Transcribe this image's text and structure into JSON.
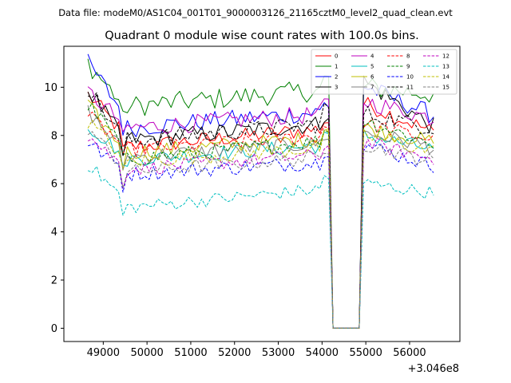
{
  "supertitle": "Data file: modeM0/AS1C04_001T01_9000003126_21165cztM0_level2_quad_clean.evt",
  "chart_data": {
    "type": "line",
    "title": "Quadrant 0 module wise count rates with 100.0s bins.",
    "xlabel": "",
    "ylabel": "",
    "x_offset_label": "+3.046e8",
    "x_start": 48650,
    "x_step": 100,
    "x_end": 56600,
    "gap": [
      54250,
      54900
    ],
    "xlim": [
      48100,
      57150
    ],
    "ylim": [
      -0.55,
      11.7
    ],
    "xticks": [
      49000,
      50000,
      51000,
      52000,
      53000,
      54000,
      55000,
      56000
    ],
    "xtick_labels": [
      "49000",
      "50000",
      "51000",
      "52000",
      "53000",
      "54000",
      "55000",
      "56000"
    ],
    "yticks": [
      0,
      2,
      4,
      6,
      8,
      10
    ],
    "ytick_labels": [
      "0",
      "2",
      "4",
      "6",
      "8",
      "10"
    ],
    "legend_position": "top-right",
    "series": [
      {
        "name": "0",
        "color": "#ff0000",
        "style": "solid",
        "start": 9.7,
        "dip": 7.4,
        "base": 7.5,
        "end": 8.3,
        "preGap": 8.6,
        "postPeak": 9.3,
        "noise": 0.35
      },
      {
        "name": "1",
        "color": "#008000",
        "style": "solid",
        "start": 11.0,
        "dip": 8.6,
        "base": 9.2,
        "end": 9.9,
        "preGap": 10.3,
        "postPeak": 10.0,
        "noise": 0.45
      },
      {
        "name": "2",
        "color": "#0000ff",
        "style": "solid",
        "start": 11.0,
        "dip": 8.3,
        "base": 8.3,
        "end": 9.0,
        "preGap": 9.3,
        "postPeak": 10.0,
        "noise": 0.4
      },
      {
        "name": "3",
        "color": "#000000",
        "style": "solid",
        "start": 9.9,
        "dip": 7.2,
        "base": 7.8,
        "end": 8.5,
        "preGap": 8.9,
        "postPeak": 10.2,
        "noise": 0.38
      },
      {
        "name": "4",
        "color": "#bf00bf",
        "style": "solid",
        "start": 9.8,
        "dip": 7.8,
        "base": 8.3,
        "end": 8.9,
        "preGap": 9.3,
        "postPeak": 9.4,
        "noise": 0.38
      },
      {
        "name": "5",
        "color": "#00bfbf",
        "style": "solid",
        "start": 8.4,
        "dip": 6.5,
        "base": 7.0,
        "end": 7.6,
        "preGap": 7.9,
        "postPeak": 8.0,
        "noise": 0.32
      },
      {
        "name": "6",
        "color": "#bfbf00",
        "style": "solid",
        "start": 9.2,
        "dip": 6.8,
        "base": 7.3,
        "end": 7.9,
        "preGap": 8.3,
        "postPeak": 8.3,
        "noise": 0.33
      },
      {
        "name": "7",
        "color": "#808080",
        "style": "solid",
        "start": 9.0,
        "dip": 6.7,
        "base": 7.1,
        "end": 7.7,
        "preGap": 8.0,
        "postPeak": 8.1,
        "noise": 0.33
      },
      {
        "name": "8",
        "color": "#ff0000",
        "style": "dashed",
        "start": 8.8,
        "dip": 6.9,
        "base": 7.4,
        "end": 8.0,
        "preGap": 8.4,
        "postPeak": 8.5,
        "noise": 0.32
      },
      {
        "name": "9",
        "color": "#008000",
        "style": "dashed",
        "start": 9.3,
        "dip": 6.9,
        "base": 7.0,
        "end": 7.8,
        "preGap": 8.2,
        "postPeak": 8.6,
        "noise": 0.33
      },
      {
        "name": "10",
        "color": "#0000ff",
        "style": "dashed",
        "start": 7.7,
        "dip": 5.9,
        "base": 6.4,
        "end": 6.9,
        "preGap": 7.4,
        "postPeak": 7.6,
        "noise": 0.32
      },
      {
        "name": "11",
        "color": "#000000",
        "style": "dashed",
        "start": 10.0,
        "dip": 7.2,
        "base": 7.8,
        "end": 8.5,
        "preGap": 9.1,
        "postPeak": 8.9,
        "noise": 0.38
      },
      {
        "name": "12",
        "color": "#bf00bf",
        "style": "dashed",
        "start": 8.0,
        "dip": 6.0,
        "base": 6.6,
        "end": 7.2,
        "preGap": 7.5,
        "postPeak": 7.7,
        "noise": 0.3
      },
      {
        "name": "13",
        "color": "#00bfbf",
        "style": "dashed",
        "start": 6.8,
        "dip": 4.7,
        "base": 5.0,
        "end": 5.8,
        "preGap": 6.3,
        "postPeak": 6.0,
        "noise": 0.28
      },
      {
        "name": "14",
        "color": "#bfbf00",
        "style": "dashed",
        "start": 8.6,
        "dip": 6.4,
        "base": 6.9,
        "end": 7.5,
        "preGap": 7.9,
        "postPeak": 8.0,
        "noise": 0.32
      },
      {
        "name": "15",
        "color": "#808080",
        "style": "dashed",
        "start": 8.3,
        "dip": 6.0,
        "base": 6.5,
        "end": 7.1,
        "preGap": 7.5,
        "postPeak": 7.6,
        "noise": 0.3
      }
    ]
  }
}
